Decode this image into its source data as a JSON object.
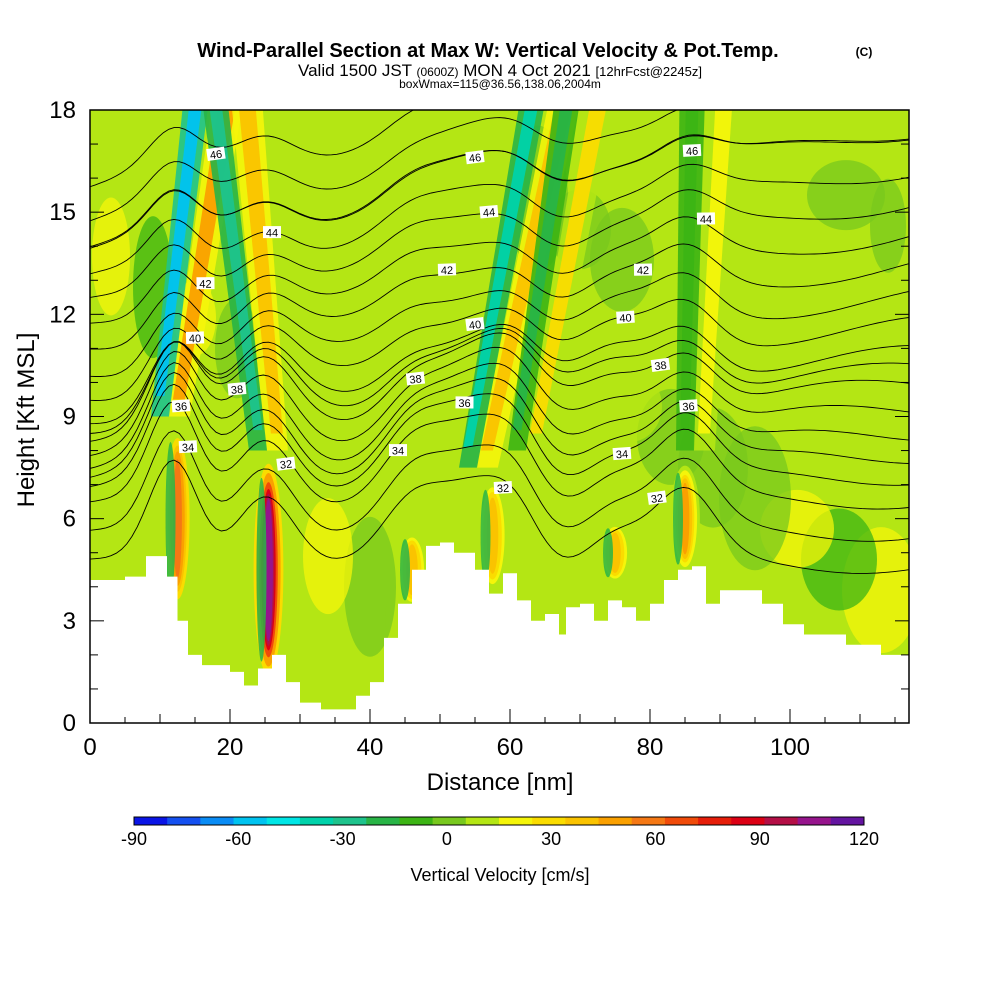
{
  "chart_data": {
    "type": "heatmap",
    "title": "Wind-Parallel Section at Max W: Vertical Velocity & Pot.Temp.",
    "title_mark": "(C)",
    "subtitle": {
      "valid": "Valid 1500 JST",
      "utc": "(0600Z)",
      "date": "MON 4 Oct 2021",
      "forecast": "[12hrFcst@2245z]"
    },
    "info_line": "boxWmax=115@36.56,138.06,2004m",
    "xlabel": "Distance [nm]",
    "ylabel": "Height [Kft MSL]",
    "xlim": [
      0,
      117
    ],
    "ylim": [
      0,
      18
    ],
    "x_ticks": [
      "0",
      "20",
      "40",
      "60",
      "80",
      "100"
    ],
    "x_tick_values": [
      0,
      20,
      40,
      60,
      80,
      100
    ],
    "y_ticks": [
      "0",
      "3",
      "6",
      "9",
      "12",
      "15",
      "18"
    ],
    "y_tick_values": [
      0,
      3,
      6,
      9,
      12,
      15,
      18
    ],
    "colorbar": {
      "label": "Vertical Velocity [cm/s]",
      "tick_labels": [
        "-90",
        "-60",
        "-30",
        "0",
        "30",
        "60",
        "90",
        "120"
      ],
      "tick_values": [
        -90,
        -60,
        -30,
        0,
        30,
        60,
        90,
        120
      ],
      "bins": [
        {
          "value": -90,
          "color": "#0a14e6"
        },
        {
          "value": -80,
          "color": "#1450f0"
        },
        {
          "value": -70,
          "color": "#0a8cf5"
        },
        {
          "value": -60,
          "color": "#00c3f0"
        },
        {
          "value": -50,
          "color": "#00e6e6"
        },
        {
          "value": -40,
          "color": "#00d2aa"
        },
        {
          "value": -30,
          "color": "#1ec38c"
        },
        {
          "value": -20,
          "color": "#28b446"
        },
        {
          "value": -10,
          "color": "#3cb414"
        },
        {
          "value": 0,
          "color": "#78c81e"
        },
        {
          "value": 10,
          "color": "#b4e614"
        },
        {
          "value": 20,
          "color": "#f5f50a"
        },
        {
          "value": 30,
          "color": "#fadc00"
        },
        {
          "value": 40,
          "color": "#fac300"
        },
        {
          "value": 50,
          "color": "#faa000"
        },
        {
          "value": 60,
          "color": "#f57814"
        },
        {
          "value": 70,
          "color": "#f04b0a"
        },
        {
          "value": 80,
          "color": "#e61e0a"
        },
        {
          "value": 90,
          "color": "#dc0014"
        },
        {
          "value": 100,
          "color": "#b40f46"
        },
        {
          "value": 110,
          "color": "#96148c"
        },
        {
          "value": 120,
          "color": "#6414a0"
        }
      ]
    },
    "updrafts": [
      {
        "x": 12.5,
        "z_bottom": 3.5,
        "z_top": 8.5,
        "w": 60
      },
      {
        "x": 25.5,
        "z_bottom": 1.5,
        "z_top": 7.5,
        "w": 115
      },
      {
        "x": 46,
        "z_bottom": 3.5,
        "z_top": 5.5,
        "w": 40
      },
      {
        "x": 57.5,
        "z_bottom": 4,
        "z_top": 7,
        "w": 40
      },
      {
        "x": 75,
        "z_bottom": 4.2,
        "z_top": 5.8,
        "w": 40
      },
      {
        "x": 85,
        "z_bottom": 4.5,
        "z_top": 7.5,
        "w": 50
      }
    ],
    "upper_bands": [
      {
        "x_base": 10,
        "z_base": 9,
        "x_top": 15,
        "z_top": 18,
        "w": -60,
        "partner_w": 50
      },
      {
        "x_base": 24,
        "z_base": 8,
        "x_top": 18,
        "z_top": 18,
        "w": -30,
        "partner_w": 40
      },
      {
        "x_base": 54,
        "z_base": 7.5,
        "x_top": 63,
        "z_top": 18,
        "w": -40,
        "partner_w": 45
      },
      {
        "x_base": 61,
        "z_base": 8,
        "x_top": 68,
        "z_top": 18,
        "w": -20,
        "partner_w": 30
      },
      {
        "x_base": 85,
        "z_base": 8,
        "x_top": 86,
        "z_top": 18,
        "w": -10,
        "partner_w": 20
      }
    ],
    "terrain": [
      [
        0,
        4.2
      ],
      [
        5,
        4.3
      ],
      [
        8,
        4.9
      ],
      [
        11,
        4.3
      ],
      [
        12.5,
        3.0
      ],
      [
        14,
        2.0
      ],
      [
        16,
        1.7
      ],
      [
        20,
        1.5
      ],
      [
        22,
        1.1
      ],
      [
        24,
        1.6
      ],
      [
        26,
        2.0
      ],
      [
        28,
        1.2
      ],
      [
        30,
        0.6
      ],
      [
        33,
        0.4
      ],
      [
        36,
        0.4
      ],
      [
        38,
        0.8
      ],
      [
        40,
        1.2
      ],
      [
        42,
        2.5
      ],
      [
        44,
        3.5
      ],
      [
        46,
        4.5
      ],
      [
        48,
        5.2
      ],
      [
        50,
        5.3
      ],
      [
        52,
        5.0
      ],
      [
        55,
        4.5
      ],
      [
        57,
        3.8
      ],
      [
        59,
        4.4
      ],
      [
        61,
        3.6
      ],
      [
        63,
        3.0
      ],
      [
        65,
        3.2
      ],
      [
        67,
        2.6
      ],
      [
        68,
        3.4
      ],
      [
        70,
        3.5
      ],
      [
        72,
        3.0
      ],
      [
        74,
        3.6
      ],
      [
        76,
        3.4
      ],
      [
        78,
        3.0
      ],
      [
        80,
        3.5
      ],
      [
        82,
        4.2
      ],
      [
        84,
        4.5
      ],
      [
        86,
        4.6
      ],
      [
        88,
        3.5
      ],
      [
        90,
        3.9
      ],
      [
        93,
        3.9
      ],
      [
        96,
        3.5
      ],
      [
        99,
        2.9
      ],
      [
        102,
        2.6
      ],
      [
        106,
        2.6
      ],
      [
        108,
        2.3
      ],
      [
        112,
        2.3
      ],
      [
        113,
        2.0
      ],
      [
        117,
        2.0
      ]
    ],
    "isentropes": [
      {
        "theta": 46,
        "z_mid": 16.6,
        "label_pos": [
          [
            18,
            16.7
          ],
          [
            55,
            16.6
          ],
          [
            86,
            16.8
          ]
        ]
      },
      {
        "theta": 44,
        "z_mid": 14.6,
        "label_pos": [
          [
            26,
            14.4
          ],
          [
            57,
            15.0
          ],
          [
            88,
            14.8
          ]
        ]
      },
      {
        "theta": 42,
        "z_mid": 12.9,
        "label_pos": [
          [
            16.5,
            12.9
          ],
          [
            51,
            13.3
          ],
          [
            79,
            13.3
          ]
        ]
      },
      {
        "theta": 40,
        "z_mid": 11.3,
        "label_pos": [
          [
            15,
            11.3
          ],
          [
            55,
            11.7
          ],
          [
            76.5,
            11.9
          ]
        ]
      },
      {
        "theta": 38,
        "z_mid": 9.9,
        "label_pos": [
          [
            21,
            9.8
          ],
          [
            46.5,
            10.1
          ],
          [
            81.5,
            10.5
          ]
        ]
      },
      {
        "theta": 36,
        "z_mid": 9.2,
        "label_pos": [
          [
            13,
            9.3
          ],
          [
            53.5,
            9.4
          ],
          [
            85.5,
            9.3
          ]
        ]
      },
      {
        "theta": 34,
        "z_mid": 8.0,
        "label_pos": [
          [
            14,
            8.1
          ],
          [
            44,
            8.0
          ],
          [
            76,
            7.9
          ]
        ]
      },
      {
        "theta": 32,
        "z_mid": 7.0,
        "label_pos": [
          [
            28,
            7.6
          ],
          [
            59,
            6.9
          ],
          [
            81,
            6.6
          ]
        ]
      }
    ]
  }
}
